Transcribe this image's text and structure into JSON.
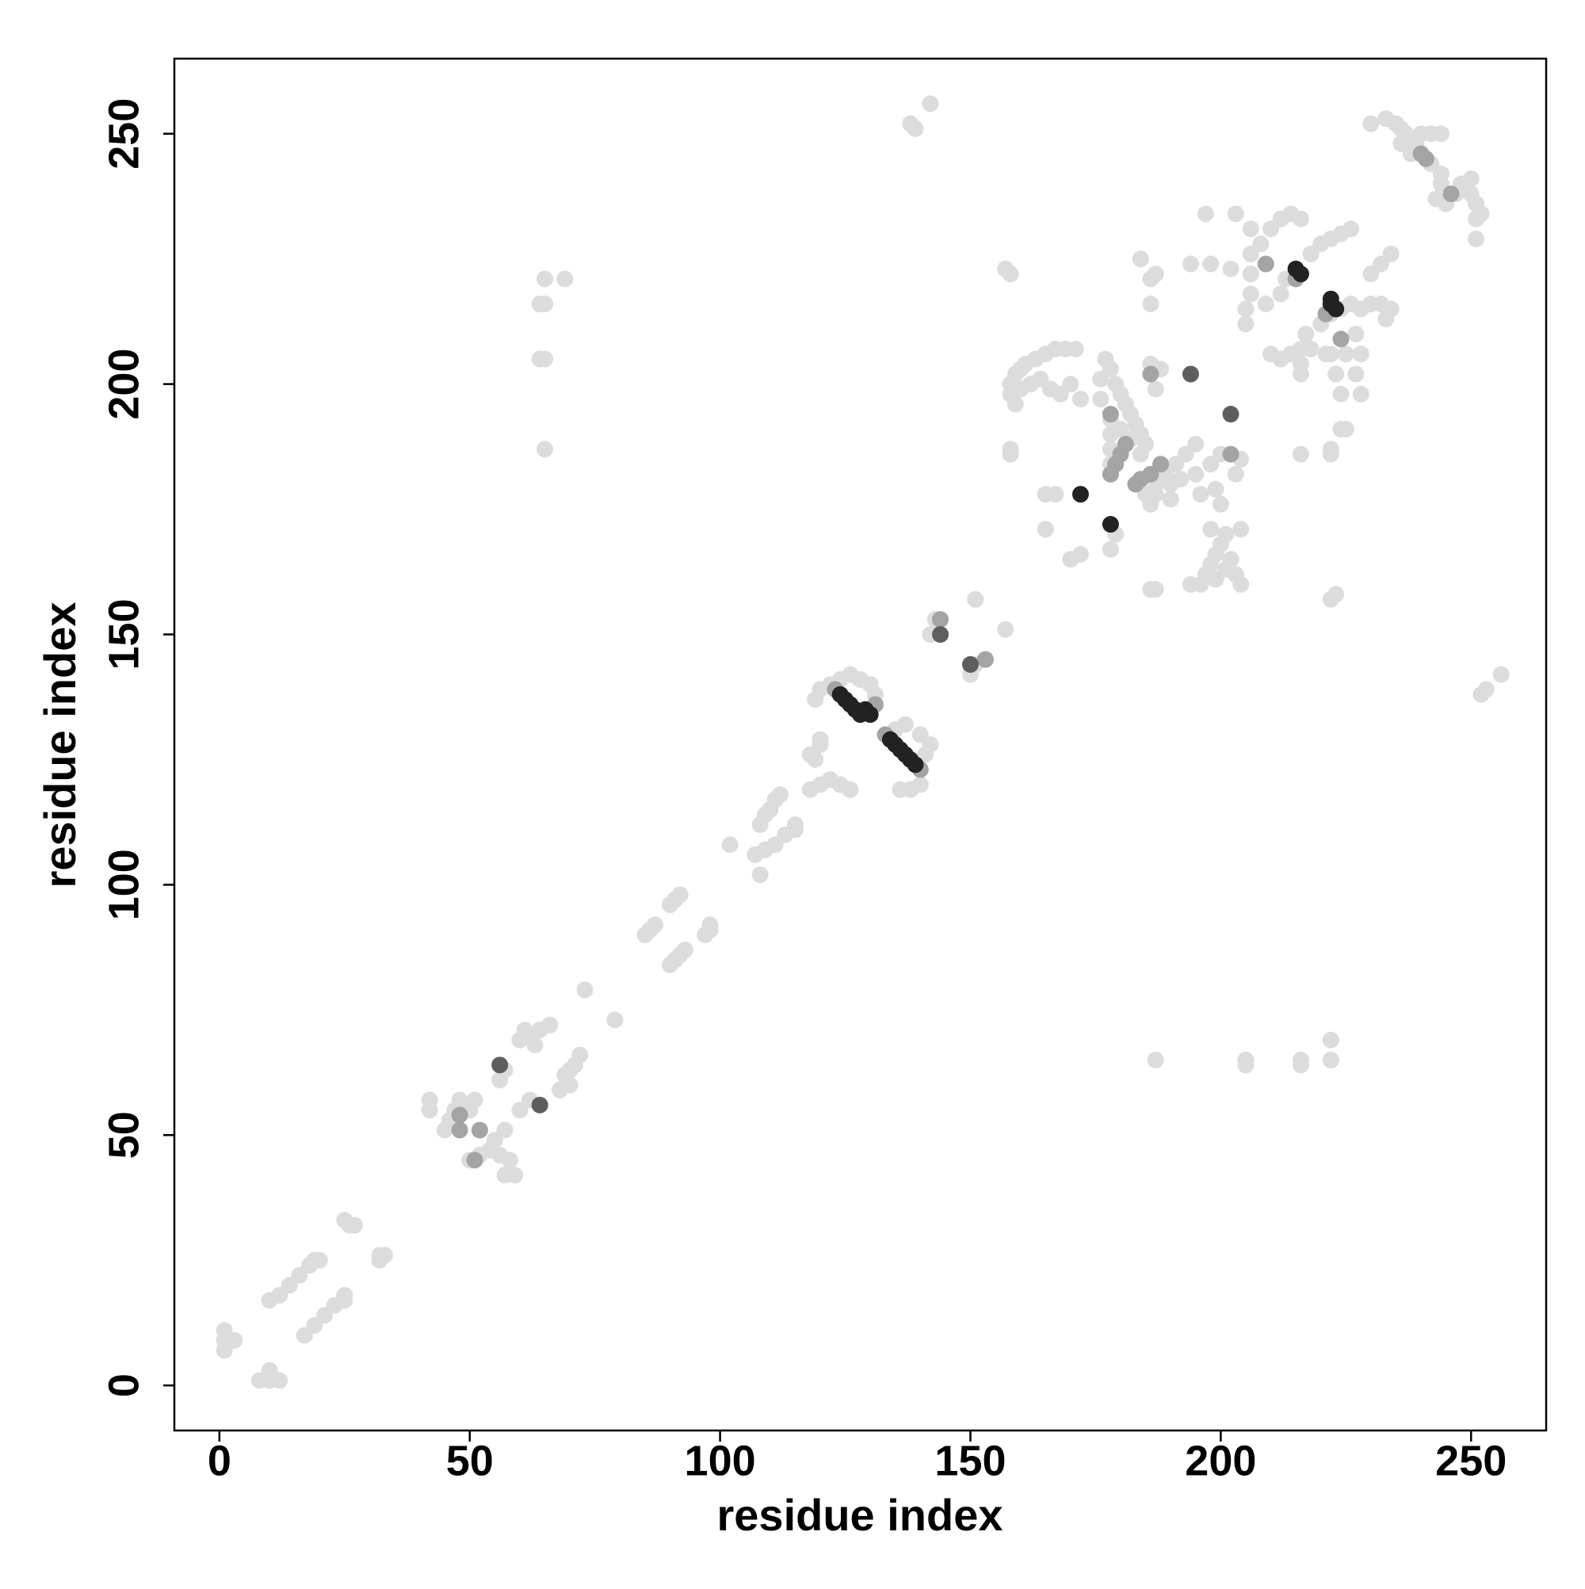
{
  "chart_data": {
    "type": "scatter",
    "xlabel": "residue index",
    "ylabel": "residue index",
    "xlim": [
      -9,
      265
    ],
    "ylim": [
      -9,
      265
    ],
    "xticks": [
      0,
      50,
      100,
      150,
      200,
      250
    ],
    "yticks": [
      0,
      50,
      100,
      150,
      200,
      250
    ],
    "grid": false,
    "series": [
      {
        "color": "#dcdcdc",
        "x": [
          1,
          1,
          1,
          3,
          8,
          10,
          12,
          10,
          10,
          12,
          14,
          16,
          18,
          19,
          20,
          17,
          19,
          21,
          23,
          25,
          25,
          26,
          25,
          27,
          32,
          33,
          32
        ],
        "values": [
          7,
          9,
          11,
          9,
          1,
          1,
          1,
          3,
          17,
          18,
          20,
          22,
          24,
          25,
          25,
          10,
          12,
          14,
          16,
          18,
          17,
          32,
          33,
          32,
          25,
          26,
          26
        ]
      },
      {
        "color": "#dcdcdc",
        "x": [
          42,
          42,
          45,
          46,
          47,
          48,
          50,
          51,
          50,
          52,
          54,
          55,
          56,
          57,
          59,
          58,
          57,
          56,
          57,
          60,
          61,
          62,
          64,
          66,
          63,
          60,
          62,
          68,
          70,
          69,
          71,
          72,
          70,
          73,
          79
        ],
        "values": [
          55,
          57,
          51,
          53,
          55,
          57,
          55,
          57,
          45,
          46,
          47,
          49,
          46,
          42,
          42,
          45,
          51,
          61,
          63,
          69,
          71,
          70,
          71,
          72,
          68,
          55,
          57,
          59,
          60,
          62,
          64,
          66,
          63,
          79,
          73
        ]
      },
      {
        "color": "#dcdcdc",
        "x": [
          85,
          86,
          87,
          90,
          91,
          92,
          90,
          91,
          92,
          93,
          97,
          98,
          98,
          102,
          108,
          108,
          109,
          110,
          111,
          112,
          107,
          109,
          111,
          113,
          115,
          115
        ],
        "values": [
          90,
          91,
          92,
          96,
          97,
          98,
          84,
          85,
          86,
          87,
          90,
          91,
          92,
          108,
          102,
          112,
          114,
          115,
          117,
          118,
          106,
          107,
          108,
          110,
          112,
          111
        ]
      },
      {
        "color": "#dcdcdc",
        "x": [
          118,
          119,
          120,
          120,
          119,
          120,
          122,
          124,
          126,
          128,
          130,
          131,
          118,
          120,
          122,
          124,
          126,
          136,
          138,
          140,
          139,
          141,
          142,
          140,
          137,
          135,
          142,
          143,
          150,
          151,
          153,
          151,
          157
        ],
        "values": [
          126,
          125,
          128,
          129,
          137,
          139,
          140,
          141,
          142,
          141,
          140,
          138,
          119,
          120,
          121,
          120,
          119,
          119,
          119,
          120,
          124,
          126,
          128,
          130,
          132,
          131,
          150,
          153,
          142,
          144,
          145,
          157,
          151
        ]
      },
      {
        "color": "#dcdcdc",
        "x": [
          138,
          139,
          142,
          252,
          253,
          256,
          65,
          65,
          64,
          64,
          65,
          65,
          69,
          187,
          205,
          205,
          216,
          216,
          222,
          222,
          157,
          158,
          222,
          223
        ],
        "values": [
          252,
          251,
          256,
          138,
          139,
          142,
          221,
          216,
          216,
          205,
          205,
          187,
          221,
          65,
          64,
          65,
          64,
          65,
          65,
          69,
          223,
          222,
          157,
          158
        ]
      },
      {
        "color": "#dcdcdc",
        "x": [
          158,
          158,
          159,
          160,
          161,
          163,
          165,
          167,
          169,
          171,
          160,
          162,
          164,
          166,
          168,
          170,
          172,
          159,
          158,
          158,
          165,
          167,
          165,
          170,
          172,
          178,
          179
        ],
        "values": [
          198,
          200,
          202,
          203,
          204,
          205,
          206,
          207,
          207,
          207,
          199,
          200,
          201,
          199,
          198,
          200,
          197,
          196,
          186,
          187,
          178,
          178,
          171,
          165,
          166,
          167,
          170
        ]
      },
      {
        "color": "#dcdcdc",
        "x": [
          177,
          178,
          179,
          180,
          181,
          182,
          183,
          184,
          185,
          178,
          178,
          178,
          178,
          180,
          182,
          184,
          186,
          188,
          187,
          176,
          176,
          185,
          187,
          189,
          191,
          193,
          195,
          187,
          190,
          192,
          195,
          198,
          200,
          199,
          196,
          203,
          204,
          200,
          186,
          190
        ],
        "values": [
          205,
          203,
          200,
          198,
          196,
          194,
          192,
          190,
          188,
          193,
          190,
          187,
          184,
          191,
          189,
          186,
          204,
          203,
          199,
          201,
          197,
          178,
          180,
          182,
          184,
          186,
          188,
          178,
          180,
          181,
          182,
          184,
          186,
          179,
          178,
          182,
          185,
          176,
          176,
          177
        ]
      },
      {
        "color": "#dcdcdc",
        "x": [
          196,
          197,
          198,
          199,
          200,
          201,
          202,
          203,
          204,
          198,
          204,
          201,
          199,
          187,
          186,
          194,
          184,
          186,
          187,
          194,
          197,
          203,
          186,
          224,
          223,
          222,
          206,
          202,
          198,
          228,
          227,
          222,
          222,
          216,
          224,
          225
        ],
        "values": [
          160,
          162,
          164,
          166,
          168,
          170,
          165,
          162,
          160,
          171,
          171,
          163,
          161,
          159,
          159,
          160,
          225,
          221,
          222,
          224,
          234,
          234,
          216,
          198,
          202,
          206,
          222,
          223,
          224,
          198,
          202,
          186,
          187,
          186,
          191,
          191
        ]
      },
      {
        "color": "#dcdcdc",
        "x": [
          205,
          205,
          206,
          206,
          206,
          208,
          210,
          212,
          214,
          216,
          213,
          209,
          212,
          218,
          220,
          222,
          224,
          226,
          210,
          212,
          214,
          216,
          218,
          217,
          220,
          222,
          224,
          226,
          228,
          230,
          232,
          234,
          221,
          225,
          228,
          216,
          216,
          230,
          232,
          234,
          233,
          227
        ],
        "values": [
          212,
          215,
          218,
          226,
          231,
          228,
          231,
          233,
          234,
          233,
          221,
          216,
          218,
          226,
          228,
          229,
          230,
          231,
          206,
          205,
          206,
          207,
          207,
          210,
          212,
          214,
          215,
          216,
          215,
          216,
          216,
          215,
          206,
          206,
          206,
          204,
          202,
          222,
          224,
          226,
          213,
          210
        ]
      },
      {
        "color": "#dcdcdc",
        "x": [
          230,
          233,
          235,
          236,
          237,
          238,
          239,
          240,
          242,
          244,
          236,
          238,
          242,
          244,
          248,
          250,
          249,
          250,
          251,
          252,
          251,
          243,
          245,
          247,
          244,
          251
        ],
        "values": [
          252,
          253,
          252,
          251,
          250,
          249,
          248,
          250,
          250,
          250,
          248,
          246,
          244,
          242,
          240,
          241,
          239,
          238,
          236,
          234,
          233,
          237,
          236,
          238,
          240,
          229
        ]
      },
      {
        "color": "#a4a4a4",
        "x": [
          48,
          51,
          52,
          48,
          123,
          131,
          133,
          140,
          144,
          153,
          178,
          179,
          180,
          181,
          184,
          186,
          188,
          186,
          202,
          209,
          224,
          215,
          221,
          240,
          246,
          241,
          178,
          183
        ],
        "values": [
          51,
          45,
          51,
          54,
          139,
          136,
          130,
          123,
          153,
          145,
          182,
          184,
          186,
          188,
          181,
          182,
          184,
          202,
          186,
          224,
          209,
          221,
          214,
          246,
          238,
          245,
          194,
          180
        ]
      },
      {
        "color": "#5e5e5e",
        "x": [
          56,
          64,
          144,
          150,
          194,
          202
        ],
        "values": [
          64,
          56,
          150,
          144,
          202,
          194
        ]
      },
      {
        "color": "#222222",
        "x": [
          124,
          125,
          126,
          127,
          128,
          129,
          130,
          134,
          135,
          136,
          137,
          138,
          139,
          172,
          178,
          216,
          215,
          222,
          223,
          222
        ],
        "values": [
          138,
          137,
          136,
          135,
          134,
          135,
          134,
          129,
          128,
          127,
          126,
          125,
          124,
          178,
          172,
          222,
          223,
          216,
          215,
          217
        ]
      }
    ]
  }
}
